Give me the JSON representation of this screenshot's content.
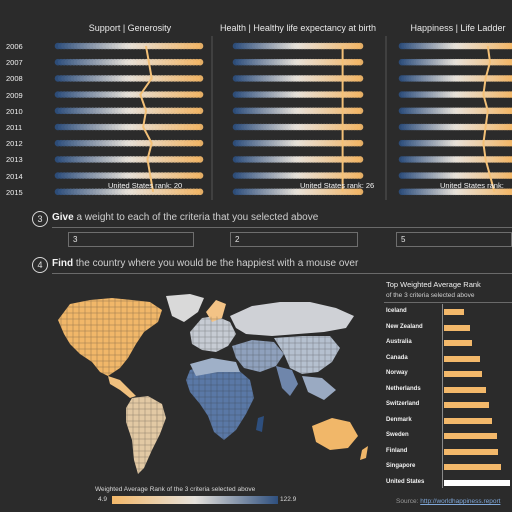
{
  "panels": [
    {
      "title": "Support | Generosity",
      "rank_text": "United States rank: 20"
    },
    {
      "title": "Health | Healthy life expectancy at birth",
      "rank_text": "United States rank: 26"
    },
    {
      "title": "Happiness | Life Ladder",
      "rank_text": "United States rank:"
    }
  ],
  "years": [
    "2006",
    "2007",
    "2008",
    "2009",
    "2010",
    "2011",
    "2012",
    "2013",
    "2014",
    "2015"
  ],
  "steps": {
    "give": {
      "number": "3",
      "bold": "Give",
      "text": "a weight to each of the criteria that you selected above"
    },
    "find": {
      "number": "4",
      "bold": "Find",
      "text": "the country where  you would be the happiest with a mouse over"
    }
  },
  "weights": [
    "3",
    "2",
    "5"
  ],
  "map": {
    "legend_title": "Weighted Average Rank of the 3 criteria selected above",
    "legend_min": "4.9",
    "legend_max": "122.9"
  },
  "ranking": {
    "title": "Top Weighted Average Rank",
    "subtitle": "of the 3 criteria selected above",
    "countries": [
      {
        "name": "Iceland",
        "value": 30
      },
      {
        "name": "New Zealand",
        "value": 40
      },
      {
        "name": "Australia",
        "value": 43
      },
      {
        "name": "Canada",
        "value": 55
      },
      {
        "name": "Norway",
        "value": 58
      },
      {
        "name": "Netherlands",
        "value": 63
      },
      {
        "name": "Switzerland",
        "value": 68
      },
      {
        "name": "Denmark",
        "value": 72
      },
      {
        "name": "Sweden",
        "value": 80
      },
      {
        "name": "Finland",
        "value": 82
      },
      {
        "name": "Singapore",
        "value": 86
      },
      {
        "name": "United States",
        "value": 100,
        "highlight": true
      }
    ],
    "source_label": "Source:",
    "source_link": "http://worldhappiness.report"
  },
  "colors": {
    "background": "#2b2b2b",
    "low_rank": "#f3b86a",
    "high_rank": "#2e4f7e",
    "usa_line": "#f3c077",
    "highlight_bar": "#ffffff"
  }
}
